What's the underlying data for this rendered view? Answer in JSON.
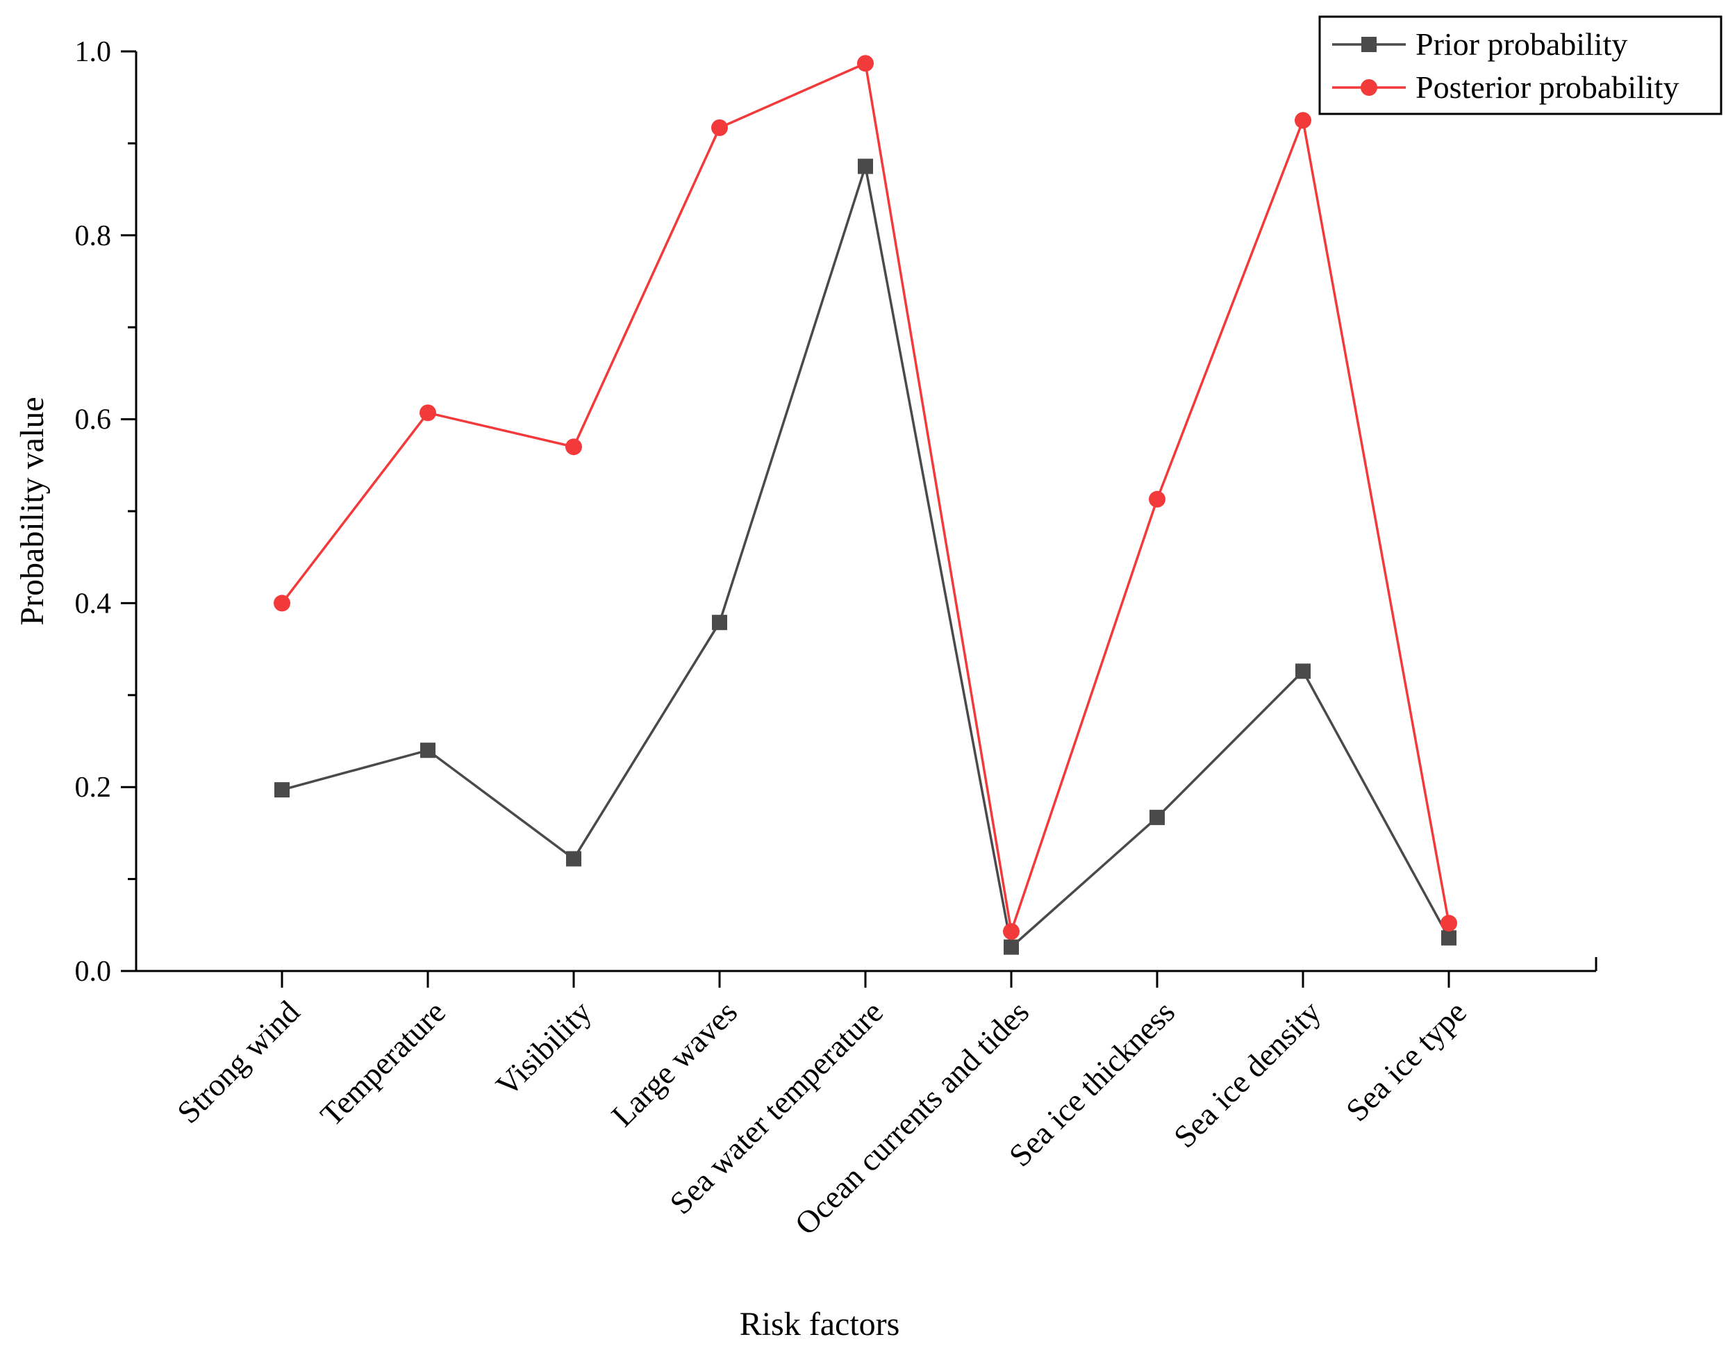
{
  "chart_data": {
    "type": "line",
    "xlabel": "Risk factors",
    "ylabel": "Probability value",
    "ylim": [
      0,
      1.0
    ],
    "yticks": [
      "0.0",
      "0.2",
      "0.4",
      "0.6",
      "0.8",
      "1.0"
    ],
    "categories": [
      "Strong wind",
      "Temperature",
      "Visibility",
      "Large waves",
      "Sea water temperature",
      "Ocean currents and tides",
      "Sea ice thickness",
      "Sea ice density",
      "Sea ice type"
    ],
    "series": [
      {
        "name": "Prior probability",
        "color": "#4a4a4a",
        "marker": "square",
        "values": [
          0.197,
          0.24,
          0.122,
          0.379,
          0.875,
          0.026,
          0.167,
          0.326,
          0.036
        ]
      },
      {
        "name": "Posterior probability",
        "color": "#f33a3a",
        "marker": "circle",
        "values": [
          0.4,
          0.607,
          0.57,
          0.917,
          0.987,
          0.043,
          0.513,
          0.925,
          0.052
        ]
      }
    ],
    "legend_position": "top-right",
    "grid": false
  }
}
